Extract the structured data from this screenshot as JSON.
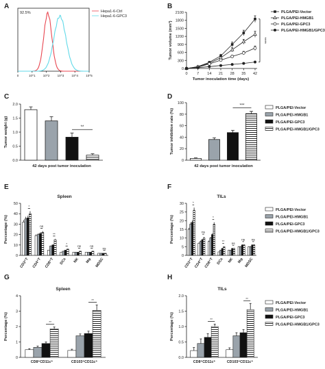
{
  "figure": {
    "panel_letters": [
      "A",
      "B",
      "C",
      "D",
      "E",
      "F",
      "G",
      "H"
    ]
  },
  "chart_data": [
    {
      "id": "A",
      "type": "area",
      "title": "",
      "annotation": "92.5%",
      "xticks": [
        "0",
        "10^1",
        "10^2",
        "10^3",
        "10^4",
        "10^5"
      ],
      "series": [
        {
          "name": "Hepa1-6-Ctrl",
          "color": "#e8454f",
          "center": 2.1,
          "width": 0.28,
          "height": 1.0
        },
        {
          "name": "Hepa1-6-GPC3",
          "color": "#5fd9e8",
          "center": 2.95,
          "width": 0.42,
          "height": 0.95
        }
      ],
      "legend": "top-right"
    },
    {
      "id": "B",
      "type": "line",
      "title": "",
      "xlabel": "Tumor inoculation time (days)",
      "ylabel": "Tumor volume (mm³)",
      "x": [
        0,
        7,
        14,
        21,
        28,
        35,
        42
      ],
      "xticks": [
        0,
        7,
        14,
        21,
        28,
        35,
        42
      ],
      "ylim": [
        0,
        2100
      ],
      "yticks": [
        0,
        300,
        600,
        900,
        1200,
        1500,
        1800,
        2100
      ],
      "series": [
        {
          "name": "PLGA/PEI-Vector",
          "marker": "filled-square",
          "values": [
            0,
            70,
            230,
            470,
            900,
            1330,
            1850
          ],
          "err": [
            0,
            15,
            40,
            60,
            90,
            100,
            120
          ]
        },
        {
          "name": "PLGA/PEI-HMGB1",
          "marker": "open-triangle",
          "values": [
            0,
            60,
            200,
            400,
            700,
            1000,
            1280
          ],
          "err": [
            0,
            15,
            35,
            55,
            75,
            90,
            110
          ]
        },
        {
          "name": "PLGA/PEI-GPC3",
          "marker": "open-circle",
          "values": [
            0,
            50,
            170,
            310,
            450,
            580,
            760
          ],
          "err": [
            0,
            10,
            25,
            40,
            50,
            60,
            80
          ]
        },
        {
          "name": "PLGA/PEI-HMGB1/GPC3",
          "marker": "filled-circle",
          "values": [
            0,
            30,
            70,
            110,
            150,
            190,
            240
          ],
          "err": [
            0,
            5,
            12,
            20,
            25,
            30,
            35
          ]
        }
      ],
      "significance": "****",
      "legend": "right"
    },
    {
      "id": "C",
      "type": "bar",
      "title": "",
      "xlabel": "42 days post tumor inoculation",
      "ylabel": "Tumor weight (g)",
      "ylim": [
        0,
        2.0
      ],
      "yticks": [
        0.0,
        0.5,
        1.0,
        1.5,
        2.0
      ],
      "yticklabels": [
        "0.0",
        "0.5",
        "1.0",
        "1.5",
        "2.0"
      ],
      "values": [
        1.8,
        1.4,
        0.82,
        0.18
      ],
      "err": [
        0.1,
        0.15,
        0.15,
        0.05
      ],
      "significance": "**"
    },
    {
      "id": "D",
      "type": "bar",
      "title": "",
      "xlabel": "42 days post tumor inoculation",
      "ylabel": "Tumor inhibition rate (%)",
      "ylim": [
        0,
        100
      ],
      "yticks": [
        0,
        20,
        40,
        60,
        80,
        100
      ],
      "values": [
        3,
        36,
        48,
        81
      ],
      "err": [
        1,
        3,
        4,
        4
      ],
      "significance": "***",
      "legend_entries": [
        "PLGA/PEI-Vector",
        "PLGA/PEI-HMGB1",
        "PLGA/PEI-GPC3",
        "PLGA/PEI-HMGB1/GPC3"
      ]
    },
    {
      "id": "E",
      "type": "bar",
      "title": "Spleen",
      "xlabel": "",
      "ylabel": "Percentage (%)",
      "ylim": [
        0,
        50
      ],
      "yticks": [
        0,
        10,
        20,
        30,
        40,
        50
      ],
      "categories": [
        "CD3⁺T",
        "CD4⁺T",
        "CD8⁺T",
        "DCs",
        "NK",
        "Mφ",
        "MDSC"
      ],
      "series": [
        {
          "name": "PLGA/PEI-Vector",
          "values": [
            32,
            19,
            5,
            3,
            3,
            3,
            2
          ]
        },
        {
          "name": "PLGA/PEI-HMGB1",
          "values": [
            35,
            20,
            9,
            4,
            3,
            3,
            2
          ]
        },
        {
          "name": "PLGA/PEI-GPC3",
          "values": [
            36,
            21,
            10,
            5,
            3,
            3,
            2
          ]
        },
        {
          "name": "PLGA/PEI-HMGB1/GPC3",
          "values": [
            40,
            22,
            15,
            6,
            4,
            4,
            2
          ]
        }
      ],
      "sig_labels": [
        "*",
        "ns",
        "**",
        "*",
        "ns",
        "ns",
        "ns"
      ]
    },
    {
      "id": "F",
      "type": "bar",
      "title": "TILs",
      "xlabel": "",
      "ylabel": "Percentage (%)",
      "ylim": [
        0,
        30
      ],
      "yticks": [
        0,
        5,
        10,
        15,
        20,
        25,
        30
      ],
      "categories": [
        "CD3⁺T",
        "CD4⁺T",
        "CD8⁺T",
        "DCs",
        "NK",
        "Mφ",
        "MDSC"
      ],
      "series": [
        {
          "name": "PLGA/PEI-Vector",
          "values": [
            15,
            7,
            8,
            2,
            3,
            5,
            5
          ]
        },
        {
          "name": "PLGA/PEI-HMGB1",
          "values": [
            18,
            8,
            10,
            3,
            3,
            5,
            5
          ]
        },
        {
          "name": "PLGA/PEI-GPC3",
          "values": [
            19,
            9,
            12,
            4,
            4,
            6,
            6
          ]
        },
        {
          "name": "PLGA/PEI-HMGB1/GPC3",
          "values": [
            26,
            10,
            18,
            5,
            4,
            6,
            6
          ]
        }
      ],
      "sig_labels": [
        "*",
        "ns",
        "*",
        "**",
        "ns",
        "ns",
        "ns"
      ],
      "legend_entries": [
        "PLGA/PEI-Vector",
        "PLGA/PEI-HMGB1",
        "PLGA/PEI-GPC3",
        "PLGA/PEI-HMGB1/GPC3"
      ]
    },
    {
      "id": "G",
      "type": "bar",
      "title": "Spleen",
      "xlabel": "",
      "ylabel": "Percentage (%)",
      "ylim": [
        0,
        4
      ],
      "yticks": [
        0,
        1,
        2,
        3,
        4
      ],
      "categories": [
        "CD8⁺CD11c⁺",
        "CD103⁺CD11c⁺"
      ],
      "series": [
        {
          "name": "PLGA/PEI-Vector",
          "values": [
            0.5,
            0.45
          ],
          "err": [
            0.06,
            0.08
          ]
        },
        {
          "name": "PLGA/PEI-HMGB1",
          "values": [
            0.65,
            1.4
          ],
          "err": [
            0.08,
            0.12
          ]
        },
        {
          "name": "PLGA/PEI-GPC3",
          "values": [
            0.9,
            1.55
          ],
          "err": [
            0.1,
            0.15
          ]
        },
        {
          "name": "PLGA/PEI-HMGB1/GPC3",
          "values": [
            1.85,
            3.05
          ],
          "err": [
            0.12,
            0.35
          ]
        }
      ],
      "sig_labels": [
        "**",
        "**"
      ]
    },
    {
      "id": "H",
      "type": "bar",
      "title": "TILs",
      "xlabel": "",
      "ylabel": "Percentage (%)",
      "ylim": [
        0,
        2.0
      ],
      "yticks": [
        0.0,
        0.5,
        1.0,
        1.5,
        2.0
      ],
      "yticklabels": [
        "0.0",
        "0.5",
        "1.0",
        "1.5",
        "2.0"
      ],
      "categories": [
        "CD8⁺CD11c⁺",
        "CD103⁺CD11c⁺"
      ],
      "series": [
        {
          "name": "PLGA/PEI-Vector",
          "values": [
            0.22,
            0.25
          ],
          "err": [
            0.1,
            0.06
          ]
        },
        {
          "name": "PLGA/PEI-HMGB1",
          "values": [
            0.45,
            0.7
          ],
          "err": [
            0.15,
            0.1
          ]
        },
        {
          "name": "PLGA/PEI-GPC3",
          "values": [
            0.65,
            0.8
          ],
          "err": [
            0.12,
            0.1
          ]
        },
        {
          "name": "PLGA/PEI-HMGB1/GPC3",
          "values": [
            1.0,
            1.55
          ],
          "err": [
            0.08,
            0.2
          ]
        }
      ],
      "sig_labels": [
        "**",
        "**"
      ],
      "legend_entries": [
        "PLGA/PEI-Vector",
        "PLGA/PEI-HMGB1",
        "PLGA/PEI-GPC3",
        "PLGA/PEI-HMGB1/GPC3"
      ]
    }
  ]
}
